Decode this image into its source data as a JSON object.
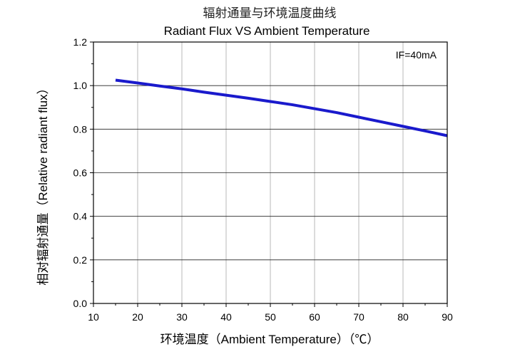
{
  "chart_data": {
    "type": "line",
    "title_cn": "辐射通量与环境温度曲线",
    "title": "Radiant Flux VS Ambient Temperature",
    "xlabel": "环境温度（Ambient Temperature）（℃）",
    "ylabel": "相对辐射通量（Relative radiant flux）",
    "annotation": "IF=40mA",
    "xlim": [
      10,
      90
    ],
    "ylim": [
      0.0,
      1.2
    ],
    "x_ticks": [
      "10",
      "20",
      "30",
      "40",
      "50",
      "60",
      "70",
      "80",
      "90"
    ],
    "y_ticks": [
      "0.0",
      "0.2",
      "0.4",
      "0.6",
      "0.8",
      "1.0",
      "1.2"
    ],
    "grid": true,
    "series": [
      {
        "name": "Relative radiant flux",
        "color": "#1a1acc",
        "x": [
          15,
          20,
          25,
          30,
          35,
          40,
          45,
          50,
          55,
          60,
          65,
          70,
          75,
          80,
          85,
          90
        ],
        "y": [
          1.025,
          1.012,
          0.998,
          0.985,
          0.97,
          0.956,
          0.942,
          0.927,
          0.912,
          0.894,
          0.876,
          0.855,
          0.834,
          0.813,
          0.792,
          0.77
        ]
      }
    ]
  },
  "colors": {
    "grid": "#a6a6a6",
    "axis": "#000000",
    "line": "#1a1acc"
  }
}
